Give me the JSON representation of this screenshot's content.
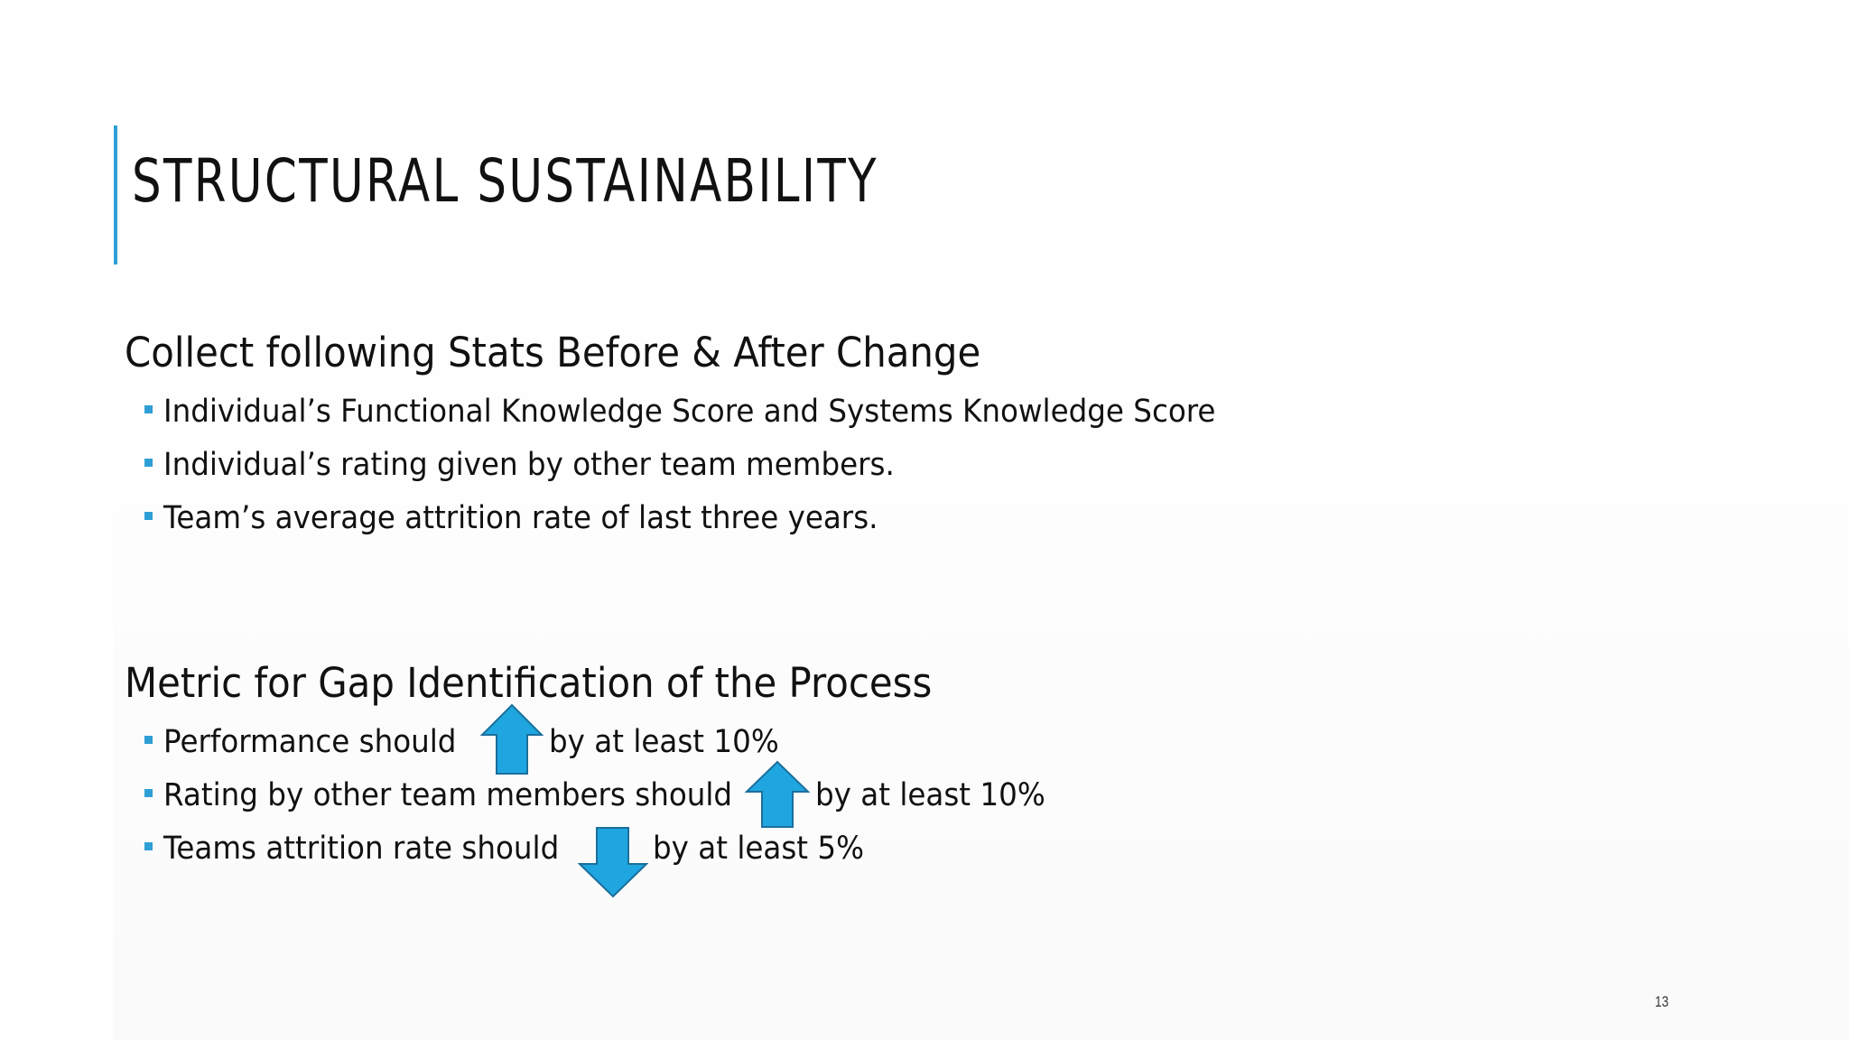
{
  "slide": {
    "title": "STRUCTURAL SUSTAINABILITY",
    "accent_color": "#2e9fd6",
    "page_number": "13"
  },
  "section_stats": {
    "heading": "Collect following Stats Before & After Change",
    "bullets": [
      "Individual’s Functional Knowledge Score and Systems Knowledge Score",
      "Individual’s rating given by other team members.",
      "Team’s average attrition rate of last three years."
    ]
  },
  "section_metric": {
    "heading": "Metric for Gap Identification of the Process",
    "bullets": [
      {
        "before": "Performance should",
        "arrow": "up-arrow-icon",
        "after": "by at least 10%"
      },
      {
        "before": "Rating by other team members should",
        "arrow": "up-arrow-icon",
        "after": "by at least 10%"
      },
      {
        "before": "Teams attrition rate should",
        "arrow": "down-arrow-icon",
        "after": "by at least 5%"
      }
    ],
    "arrow_fill": "#1fa6e0",
    "arrow_stroke": "#1b6f9c"
  }
}
